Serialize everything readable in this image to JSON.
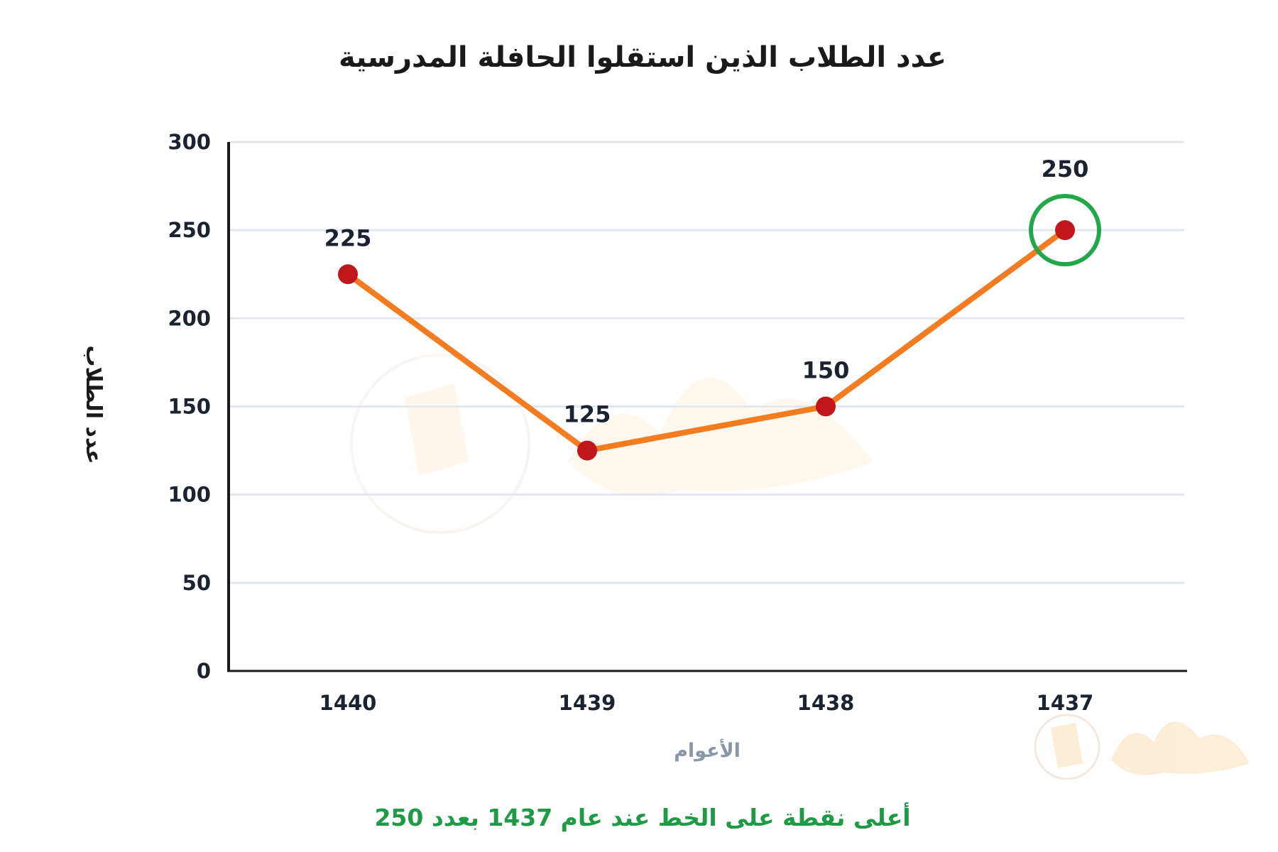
{
  "chart_data": {
    "type": "line",
    "title": "عدد الطلاب الذين استقلوا الحافلة المدرسية",
    "xlabel": "الأعوام",
    "ylabel": "عدد الطلاب",
    "categories": [
      "1440",
      "1439",
      "1438",
      "1437"
    ],
    "values": [
      225,
      125,
      150,
      250
    ],
    "ylim": [
      0,
      300
    ],
    "yticks": [
      0,
      50,
      100,
      150,
      200,
      250,
      300
    ],
    "grid": true,
    "data_labels": [
      "225",
      "125",
      "150",
      "250"
    ],
    "highlight_category": "1437",
    "annotation": "أعلى نقطة على الخط عند عام 1437 بعدد 250",
    "colors": {
      "line": "#f47c20",
      "marker": "#c0161c",
      "highlight": "#22a84a",
      "grid": "#e3e8ef",
      "axis": "#1a1a1a",
      "annotation": "#1f9b48"
    }
  }
}
